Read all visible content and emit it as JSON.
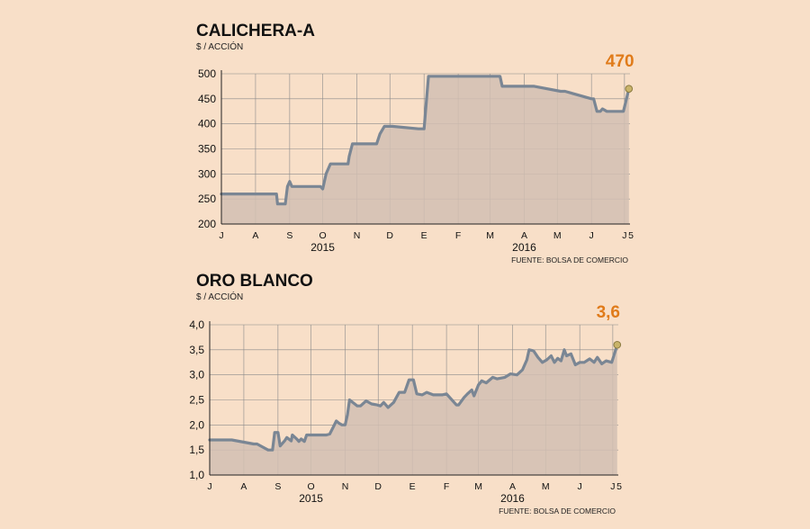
{
  "colors": {
    "background": "#f8dfc8",
    "line": "#7a8694",
    "fill": "#d2bfb3",
    "highlight": "#e07b1a",
    "endpoint_fill": "#c9b46a",
    "grid": "#8a8a8a"
  },
  "chart_data": [
    {
      "type": "area",
      "title": "CALICHERA-A",
      "subtitle": "$ / ACCIÓN",
      "source": "FUENTE: BOLSA DE COMERCIO",
      "ylim": [
        200,
        500
      ],
      "yticks": [
        200,
        250,
        300,
        350,
        400,
        450,
        500
      ],
      "ytick_labels": [
        "200",
        "250",
        "300",
        "350",
        "400",
        "450",
        "500"
      ],
      "xlim": [
        "2015-07-01",
        "2016-07-06"
      ],
      "months": [
        {
          "label": "J",
          "date": "2015-07-01"
        },
        {
          "label": "A",
          "date": "2015-08-01"
        },
        {
          "label": "S",
          "date": "2015-09-01"
        },
        {
          "label": "O",
          "date": "2015-10-01"
        },
        {
          "label": "N",
          "date": "2015-11-01"
        },
        {
          "label": "D",
          "date": "2015-12-01"
        },
        {
          "label": "E",
          "date": "2016-01-01"
        },
        {
          "label": "F",
          "date": "2016-02-01"
        },
        {
          "label": "M",
          "date": "2016-03-01"
        },
        {
          "label": "A",
          "date": "2016-04-01"
        },
        {
          "label": "M",
          "date": "2016-05-01"
        },
        {
          "label": "J",
          "date": "2016-06-01"
        },
        {
          "label": "J",
          "date": "2016-07-01"
        }
      ],
      "end_tick_label": "5",
      "years": [
        {
          "label": "2015",
          "date": "2015-10-01"
        },
        {
          "label": "2016",
          "date": "2016-04-01"
        }
      ],
      "last_label": "470",
      "series": [
        {
          "x": [
            "2015-07-01",
            "2015-08-20",
            "2015-08-21",
            "2015-08-28",
            "2015-08-30",
            "2015-09-01",
            "2015-09-03",
            "2015-09-29",
            "2015-10-01",
            "2015-10-04",
            "2015-10-08",
            "2015-10-24",
            "2015-10-25",
            "2015-10-28",
            "2015-11-19",
            "2015-11-22",
            "2015-11-26",
            "2015-12-03",
            "2015-12-27",
            "2015-12-28",
            "2016-01-01",
            "2016-01-05",
            "2016-03-10",
            "2016-03-12",
            "2016-04-06",
            "2016-04-10",
            "2016-05-04",
            "2016-05-08",
            "2016-06-01",
            "2016-06-03",
            "2016-06-06",
            "2016-06-09",
            "2016-06-11",
            "2016-06-15",
            "2016-06-30",
            "2016-07-05"
          ],
          "y": [
            260,
            260,
            240,
            240,
            275,
            285,
            275,
            275,
            270,
            300,
            320,
            320,
            335,
            360,
            360,
            380,
            395,
            395,
            390,
            390,
            390,
            495,
            495,
            475,
            475,
            475,
            465,
            465,
            450,
            450,
            425,
            425,
            430,
            425,
            425,
            470
          ]
        }
      ]
    },
    {
      "type": "area",
      "title": "ORO BLANCO",
      "subtitle": "$ / ACCIÓN",
      "source": "FUENTE: BOLSA DE COMERCIO",
      "ylim": [
        1.0,
        4.0
      ],
      "yticks": [
        1.0,
        1.5,
        2.0,
        2.5,
        3.0,
        3.5,
        4.0
      ],
      "ytick_labels": [
        "1,0",
        "1,5",
        "2,0",
        "2,5",
        "3,0",
        "3,5",
        "4,0"
      ],
      "xlim": [
        "2015-07-01",
        "2016-07-06"
      ],
      "months": [
        {
          "label": "J",
          "date": "2015-07-01"
        },
        {
          "label": "A",
          "date": "2015-08-01"
        },
        {
          "label": "S",
          "date": "2015-09-01"
        },
        {
          "label": "O",
          "date": "2015-10-01"
        },
        {
          "label": "N",
          "date": "2015-11-01"
        },
        {
          "label": "D",
          "date": "2015-12-01"
        },
        {
          "label": "E",
          "date": "2016-01-01"
        },
        {
          "label": "F",
          "date": "2016-02-01"
        },
        {
          "label": "M",
          "date": "2016-03-01"
        },
        {
          "label": "A",
          "date": "2016-04-01"
        },
        {
          "label": "M",
          "date": "2016-05-01"
        },
        {
          "label": "J",
          "date": "2016-06-01"
        },
        {
          "label": "J",
          "date": "2016-07-01"
        }
      ],
      "end_tick_label": "5",
      "years": [
        {
          "label": "2015",
          "date": "2015-10-01"
        },
        {
          "label": "2016",
          "date": "2016-04-01"
        }
      ],
      "last_label": "3,6",
      "series": [
        {
          "x": [
            "2015-07-01",
            "2015-07-20",
            "2015-07-21",
            "2015-08-10",
            "2015-08-13",
            "2015-08-23",
            "2015-08-25",
            "2015-08-27",
            "2015-08-29",
            "2015-09-01",
            "2015-09-03",
            "2015-09-07",
            "2015-09-09",
            "2015-09-13",
            "2015-09-14",
            "2015-09-18",
            "2015-09-20",
            "2015-09-22",
            "2015-09-25",
            "2015-09-27",
            "2015-10-01",
            "2015-10-15",
            "2015-10-18",
            "2015-10-21",
            "2015-10-24",
            "2015-10-26",
            "2015-10-29",
            "2015-11-01",
            "2015-11-03",
            "2015-11-05",
            "2015-11-12",
            "2015-11-15",
            "2015-11-20",
            "2015-11-25",
            "2015-11-30",
            "2015-12-03",
            "2015-12-06",
            "2015-12-10",
            "2015-12-15",
            "2015-12-20",
            "2015-12-25",
            "2015-12-29",
            "2016-01-02",
            "2016-01-05",
            "2016-01-10",
            "2016-01-14",
            "2016-01-20",
            "2016-01-25",
            "2016-01-28",
            "2016-02-01",
            "2016-02-10",
            "2016-02-12",
            "2016-02-17",
            "2016-02-20",
            "2016-02-24",
            "2016-02-26",
            "2016-03-01",
            "2016-03-04",
            "2016-03-08",
            "2016-03-14",
            "2016-03-18",
            "2016-03-25",
            "2016-03-30",
            "2016-04-05",
            "2016-04-10",
            "2016-04-14",
            "2016-04-16",
            "2016-04-20",
            "2016-04-24",
            "2016-04-28",
            "2016-05-02",
            "2016-05-06",
            "2016-05-09",
            "2016-05-12",
            "2016-05-15",
            "2016-05-18",
            "2016-05-20",
            "2016-05-24",
            "2016-05-28",
            "2016-06-01",
            "2016-06-05",
            "2016-06-10",
            "2016-06-14",
            "2016-06-17",
            "2016-06-21",
            "2016-06-25",
            "2016-06-30",
            "2016-07-05"
          ],
          "y": [
            1.7,
            1.7,
            1.7,
            1.62,
            1.62,
            1.5,
            1.5,
            1.5,
            1.85,
            1.85,
            1.58,
            1.68,
            1.75,
            1.68,
            1.8,
            1.72,
            1.67,
            1.72,
            1.67,
            1.8,
            1.8,
            1.8,
            1.82,
            1.95,
            2.08,
            2.04,
            2.0,
            2.0,
            2.2,
            2.5,
            2.38,
            2.38,
            2.48,
            2.42,
            2.4,
            2.38,
            2.45,
            2.35,
            2.45,
            2.65,
            2.65,
            2.9,
            2.9,
            2.62,
            2.6,
            2.65,
            2.6,
            2.6,
            2.6,
            2.62,
            2.4,
            2.4,
            2.55,
            2.62,
            2.7,
            2.58,
            2.8,
            2.88,
            2.84,
            2.95,
            2.92,
            2.95,
            3.02,
            3.0,
            3.1,
            3.3,
            3.5,
            3.48,
            3.35,
            3.25,
            3.3,
            3.38,
            3.25,
            3.33,
            3.28,
            3.5,
            3.38,
            3.42,
            3.2,
            3.25,
            3.25,
            3.32,
            3.25,
            3.35,
            3.22,
            3.28,
            3.25,
            3.6
          ]
        }
      ]
    }
  ]
}
